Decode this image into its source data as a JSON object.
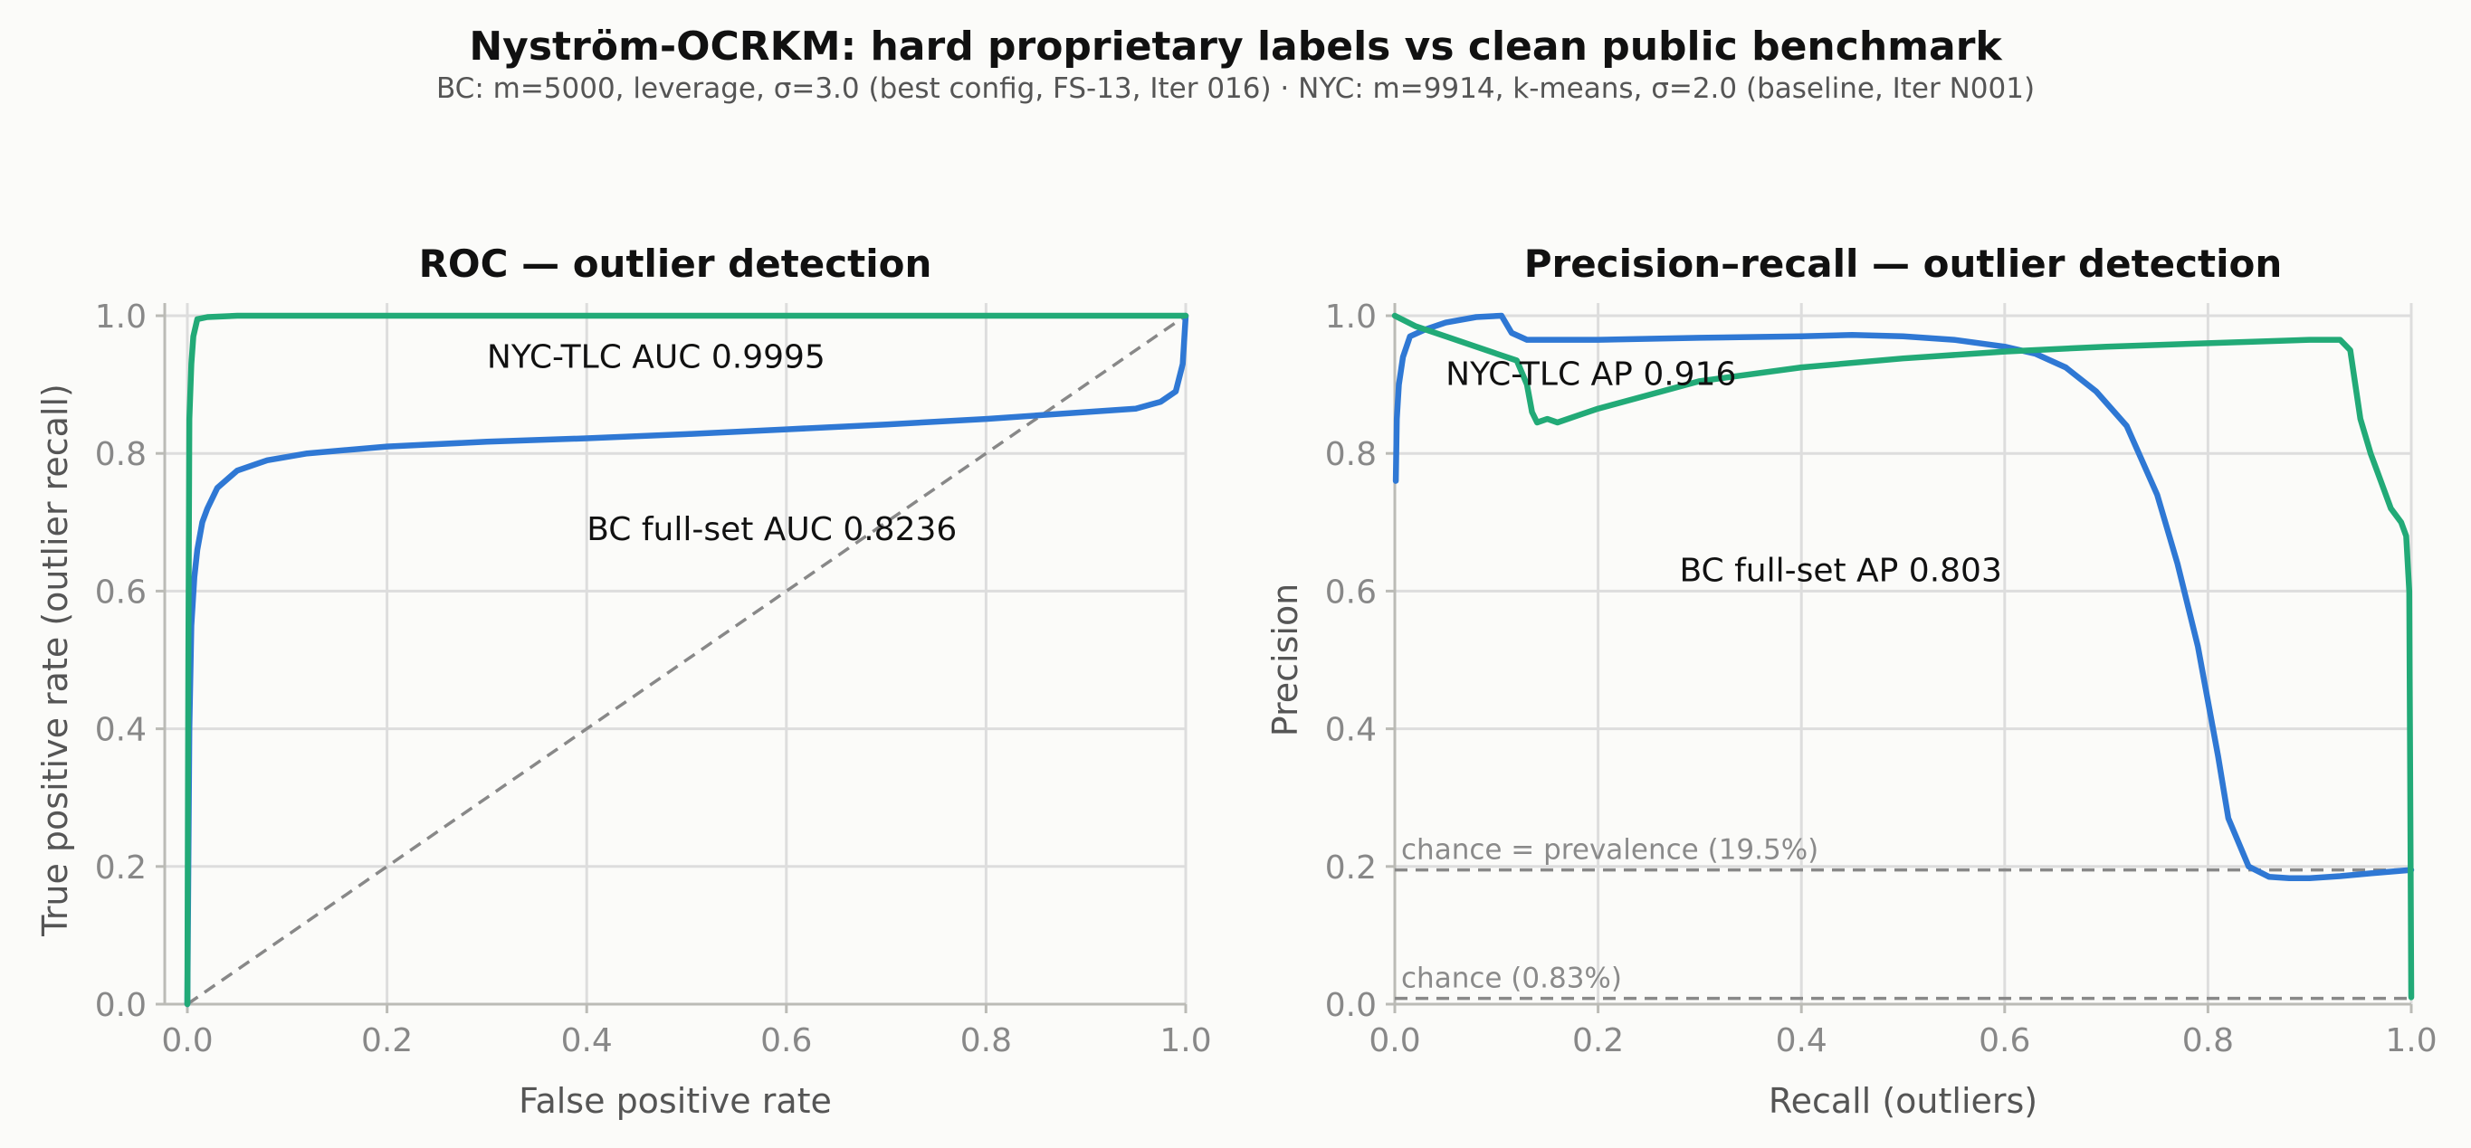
{
  "figure": {
    "title": "Nyström-OCRKM: hard proprietary labels vs clean public benchmark",
    "subtitle": "BC: m=5000, leverage, σ=3.0 (best config, FS-13, Iter 016) · NYC: m=9914, k-means, σ=2.0 (baseline, Iter N001)"
  },
  "colors": {
    "bc": "#2f78d4",
    "nyc": "#22aa77",
    "chance": "#888888"
  },
  "chart_data": [
    {
      "id": "roc",
      "type": "line",
      "title": "ROC — outlier detection",
      "xlabel": "False positive rate",
      "ylabel": "True positive rate (outlier recall)",
      "xlim": [
        0,
        1
      ],
      "ylim": [
        0,
        1
      ],
      "xticks": [
        "0.0",
        "0.2",
        "0.4",
        "0.6",
        "0.8",
        "1.0"
      ],
      "yticks": [
        "0.0",
        "0.2",
        "0.4",
        "0.6",
        "0.8",
        "1.0"
      ],
      "grid": true,
      "series": [
        {
          "key": "bc",
          "color": "#2f78d4",
          "x": [
            0,
            0.001,
            0.002,
            0.004,
            0.007,
            0.01,
            0.015,
            0.02,
            0.03,
            0.05,
            0.08,
            0.12,
            0.2,
            0.3,
            0.4,
            0.5,
            0.6,
            0.7,
            0.8,
            0.9,
            0.95,
            0.975,
            0.99,
            0.997,
            1.0
          ],
          "y": [
            0,
            0.2,
            0.4,
            0.55,
            0.62,
            0.66,
            0.7,
            0.72,
            0.75,
            0.775,
            0.79,
            0.8,
            0.81,
            0.817,
            0.822,
            0.828,
            0.835,
            0.842,
            0.85,
            0.86,
            0.865,
            0.875,
            0.89,
            0.93,
            1.0
          ]
        },
        {
          "key": "nyc",
          "color": "#22aa77",
          "x": [
            0,
            0.001,
            0.002,
            0.004,
            0.006,
            0.01,
            0.02,
            0.05,
            1.0
          ],
          "y": [
            0,
            0.5,
            0.85,
            0.93,
            0.97,
            0.995,
            0.998,
            1.0,
            1.0
          ]
        }
      ],
      "reference": {
        "x": [
          0,
          1
        ],
        "y": [
          0,
          1
        ]
      },
      "annotations": [
        {
          "text": "NYC-TLC  AUC 0.9995",
          "x": 0.3,
          "y": 0.94
        },
        {
          "text": "BC full-set  AUC 0.8236",
          "x": 0.4,
          "y": 0.69
        }
      ]
    },
    {
      "id": "pr",
      "type": "line",
      "title": "Precision–recall — outlier detection",
      "xlabel": "Recall (outliers)",
      "ylabel": "Precision",
      "xlim": [
        0,
        1
      ],
      "ylim": [
        0,
        1
      ],
      "xticks": [
        "0.0",
        "0.2",
        "0.4",
        "0.6",
        "0.8",
        "1.0"
      ],
      "yticks": [
        "0.0",
        "0.2",
        "0.4",
        "0.6",
        "0.8",
        "1.0"
      ],
      "grid": true,
      "series": [
        {
          "key": "bc",
          "color": "#2f78d4",
          "x": [
            0.001,
            0.002,
            0.004,
            0.008,
            0.015,
            0.03,
            0.05,
            0.08,
            0.105,
            0.115,
            0.13,
            0.2,
            0.3,
            0.4,
            0.45,
            0.5,
            0.55,
            0.6,
            0.63,
            0.66,
            0.69,
            0.72,
            0.75,
            0.77,
            0.79,
            0.8,
            0.81,
            0.82,
            0.84,
            0.86,
            0.88,
            0.9,
            0.93,
            0.96,
            1.0
          ],
          "y": [
            0.76,
            0.85,
            0.9,
            0.94,
            0.97,
            0.98,
            0.99,
            0.998,
            1.0,
            0.975,
            0.965,
            0.965,
            0.968,
            0.97,
            0.972,
            0.97,
            0.965,
            0.955,
            0.945,
            0.925,
            0.89,
            0.84,
            0.74,
            0.64,
            0.52,
            0.44,
            0.36,
            0.27,
            0.2,
            0.185,
            0.183,
            0.183,
            0.186,
            0.19,
            0.195
          ]
        },
        {
          "key": "nyc",
          "color": "#22aa77",
          "x": [
            0,
            0.02,
            0.05,
            0.1,
            0.12,
            0.13,
            0.135,
            0.14,
            0.15,
            0.16,
            0.18,
            0.2,
            0.25,
            0.3,
            0.4,
            0.5,
            0.6,
            0.7,
            0.8,
            0.9,
            0.93,
            0.94,
            0.945,
            0.95,
            0.96,
            0.97,
            0.98,
            0.99,
            0.995,
            0.998,
            1.0
          ],
          "y": [
            1.0,
            0.985,
            0.97,
            0.945,
            0.935,
            0.9,
            0.86,
            0.845,
            0.85,
            0.845,
            0.855,
            0.865,
            0.885,
            0.905,
            0.925,
            0.938,
            0.948,
            0.955,
            0.96,
            0.965,
            0.965,
            0.95,
            0.9,
            0.85,
            0.8,
            0.76,
            0.72,
            0.7,
            0.68,
            0.6,
            0.01
          ]
        }
      ],
      "chance_lines": [
        {
          "label": "chance = prevalence (19.5%)",
          "y": 0.195
        },
        {
          "label": "chance (0.83%)",
          "y": 0.0083
        }
      ],
      "annotations": [
        {
          "text": "NYC-TLC  AP 0.916",
          "x": 0.05,
          "y": 0.915
        },
        {
          "text": "BC full-set  AP 0.803",
          "x": 0.28,
          "y": 0.63
        }
      ]
    }
  ]
}
